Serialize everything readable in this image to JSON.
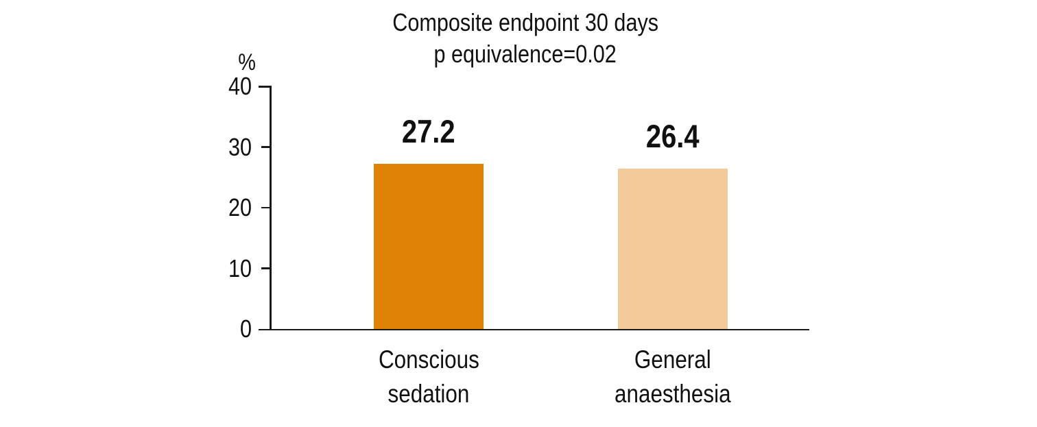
{
  "figure": {
    "background": "#ffffff",
    "text_color": "#111111",
    "axis_color": "#1a1a1a"
  },
  "chart_data": {
    "type": "bar",
    "title": "Composite endpoint 30 days",
    "subtitle": "p equivalence=0.02",
    "ylabel": "%",
    "xlabel": "",
    "ylim": [
      0,
      40
    ],
    "yticks": [
      0,
      10,
      20,
      30,
      40
    ],
    "grid": false,
    "legend": false,
    "categories": [
      "Conscious sedation",
      "General anaesthesia"
    ],
    "category_lines": [
      [
        "Conscious",
        "sedation"
      ],
      [
        "General",
        "anaesthesia"
      ]
    ],
    "values": [
      27.2,
      26.4
    ],
    "value_labels": [
      "27.2",
      "26.4"
    ],
    "bar_colors": [
      "#E08206",
      "#F4CA9B"
    ]
  }
}
